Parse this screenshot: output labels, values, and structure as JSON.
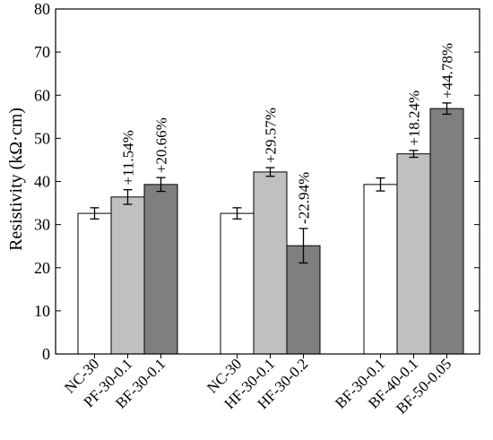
{
  "chart_data": {
    "type": "bar",
    "ylabel": "Resistivity (kΩ·cm)",
    "ylim": [
      0,
      80
    ],
    "yticks": [
      0,
      10,
      20,
      30,
      40,
      50,
      60,
      70,
      80
    ],
    "groups": [
      {
        "bars": [
          {
            "category": "NC-30",
            "value": 32.6,
            "error": 1.3,
            "fill": "#ffffff",
            "annotation": ""
          },
          {
            "category": "PF-30-0.1",
            "value": 36.4,
            "error": 1.7,
            "fill": "#c0c0c0",
            "annotation": "+11.54%"
          },
          {
            "category": "BF-30-0.1",
            "value": 39.3,
            "error": 1.6,
            "fill": "#7f7f7f",
            "annotation": "+20.66%"
          }
        ]
      },
      {
        "bars": [
          {
            "category": "NC-30",
            "value": 32.6,
            "error": 1.3,
            "fill": "#ffffff",
            "annotation": ""
          },
          {
            "category": "HF-30-0.1",
            "value": 42.2,
            "error": 1.0,
            "fill": "#c0c0c0",
            "annotation": "+29.57%"
          },
          {
            "category": "HF-30-0.2",
            "value": 25.1,
            "error": 4.0,
            "fill": "#7f7f7f",
            "annotation": "-22.94%"
          }
        ]
      },
      {
        "bars": [
          {
            "category": "BF-30-0.1",
            "value": 39.3,
            "error": 1.5,
            "fill": "#ffffff",
            "annotation": ""
          },
          {
            "category": "BF-40-0.1",
            "value": 46.4,
            "error": 0.8,
            "fill": "#c0c0c0",
            "annotation": "+18.24%"
          },
          {
            "category": "BF-50-0.05",
            "value": 56.9,
            "error": 1.3,
            "fill": "#7f7f7f",
            "annotation": "+44.78%"
          }
        ]
      }
    ]
  }
}
